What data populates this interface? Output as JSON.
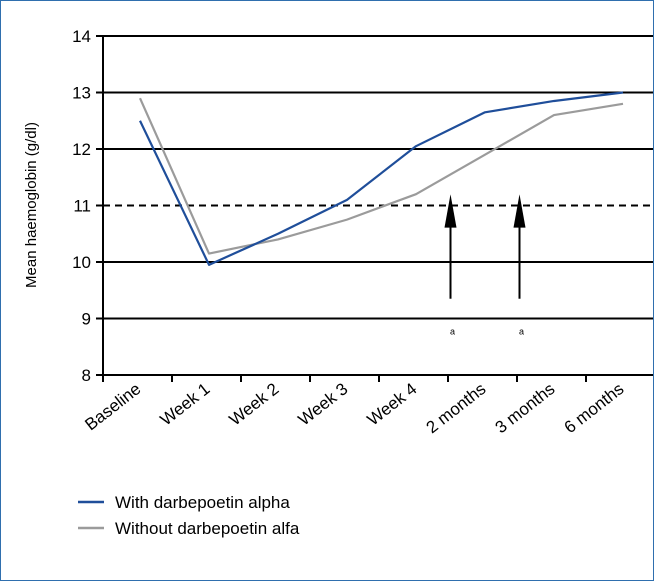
{
  "colors": {
    "with_series": "#1f4e9a",
    "without_series": "#9b9b9b",
    "frame": "#2f6fae",
    "reference_line": "#000000"
  },
  "chart_data": {
    "type": "line",
    "title": "",
    "xlabel": "",
    "ylabel": "Mean haemoglobin  (g/dl)",
    "categories": [
      "Baseline",
      "Week 1",
      "Week 2",
      "Week 3",
      "Week 4",
      "2 months",
      "3 months",
      "6 months"
    ],
    "ylim": [
      8,
      14
    ],
    "yticks": [
      8,
      9,
      10,
      11,
      12,
      13,
      14
    ],
    "grid": "horizontal",
    "legend_position": "bottom-left",
    "series": [
      {
        "name": "With darbepoetin alpha",
        "color": "#1f4e9a",
        "values": [
          12.5,
          9.95,
          10.5,
          11.1,
          12.05,
          12.65,
          12.85,
          13.0
        ]
      },
      {
        "name": "Without darbepoetin alfa",
        "color": "#9b9b9b",
        "values": [
          12.9,
          10.15,
          10.4,
          10.75,
          11.2,
          11.9,
          12.6,
          12.8
        ]
      }
    ],
    "reference_line": {
      "y": 11,
      "style": "dashed"
    },
    "annotations": [
      {
        "type": "arrow",
        "after_category": "Week 4",
        "label": "a"
      },
      {
        "type": "arrow",
        "after_category": "2 months",
        "label": "a"
      }
    ]
  }
}
